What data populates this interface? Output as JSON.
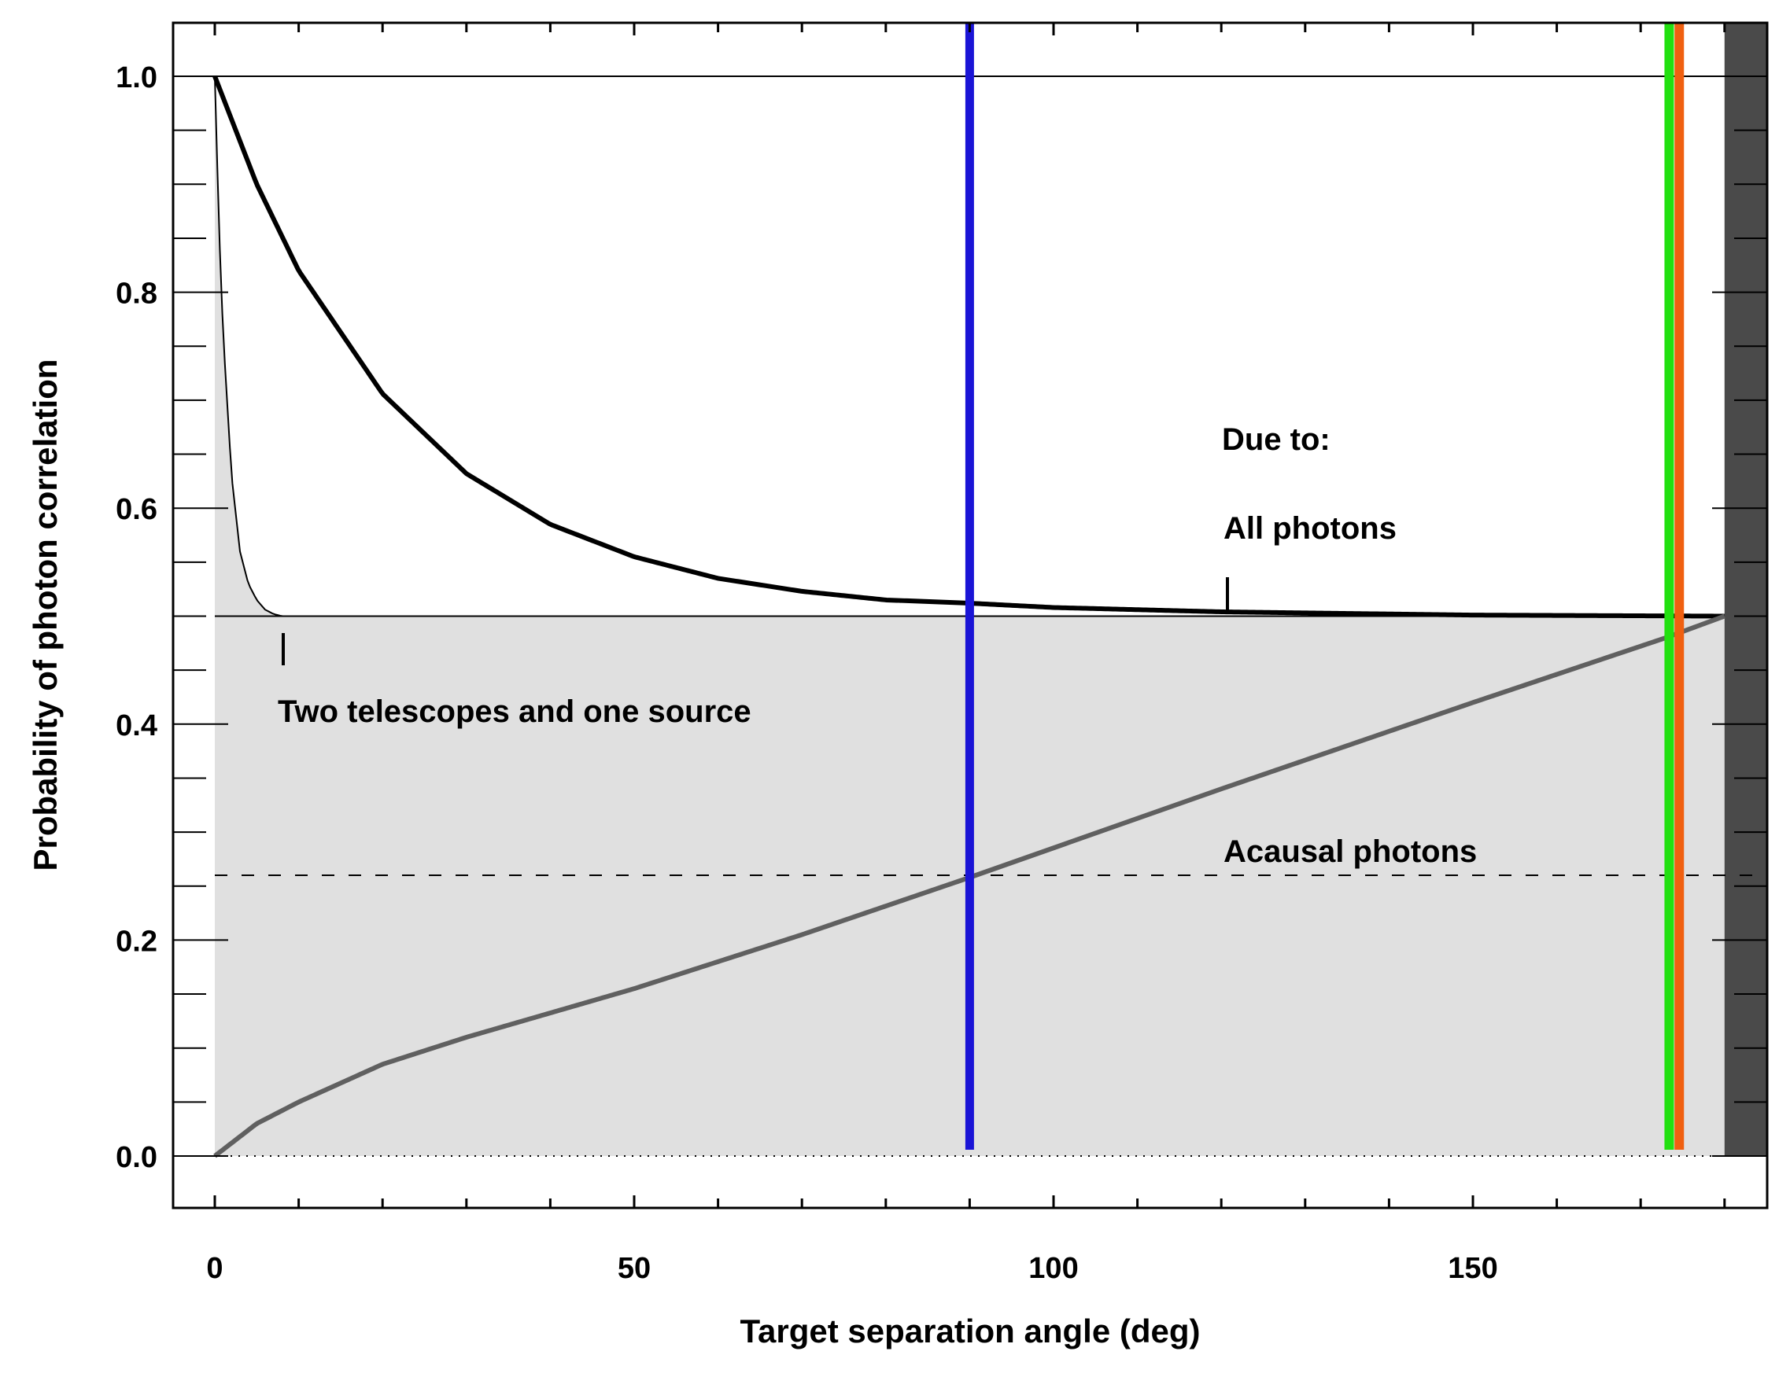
{
  "chart_data": {
    "type": "line",
    "xlabel": "Target separation angle (deg)",
    "ylabel": "Probability of photon correlation",
    "xlim": [
      -10,
      185
    ],
    "ylim": [
      -0.05,
      1.05
    ],
    "xticks": [
      "0",
      "50",
      "100",
      "150"
    ],
    "xtick_values": [
      0,
      50,
      100,
      150
    ],
    "yticks": [
      "0.0",
      "0.2",
      "0.4",
      "0.6",
      "0.8",
      "1.0"
    ],
    "ytick_values": [
      0,
      0.2,
      0.4,
      0.6,
      0.8,
      1.0
    ],
    "grid": false,
    "series": [
      {
        "name": "All photons",
        "color": "#000000",
        "style": "thick",
        "x": [
          0,
          5,
          10,
          20,
          30,
          40,
          50,
          60,
          70,
          80,
          90,
          100,
          120,
          150,
          180
        ],
        "y": [
          1.0,
          0.9,
          0.82,
          0.706,
          0.632,
          0.585,
          0.555,
          0.535,
          0.523,
          0.515,
          0.512,
          0.508,
          0.504,
          0.501,
          0.5
        ]
      },
      {
        "name": "Two telescopes and one source",
        "color": "#000000",
        "style": "thin",
        "x": [
          0,
          0.5,
          1,
          2,
          3,
          4,
          5,
          6,
          7,
          8,
          180
        ],
        "y": [
          1.0,
          0.86,
          0.76,
          0.63,
          0.56,
          0.53,
          0.515,
          0.506,
          0.502,
          0.5,
          0.5
        ]
      },
      {
        "name": "Acausal photons",
        "color": "#606060",
        "style": "thick",
        "x": [
          0,
          5,
          10,
          20,
          30,
          50,
          70,
          90,
          120,
          150,
          173,
          180
        ],
        "y": [
          0,
          0.03,
          0.05,
          0.085,
          0.11,
          0.155,
          0.205,
          0.258,
          0.34,
          0.42,
          0.48,
          0.5
        ]
      }
    ],
    "reference_lines": {
      "horizontal_solid": [
        1.0,
        0.5
      ],
      "horizontal_dashed": 0.26,
      "horizontal_dotted": 0.0
    },
    "vertical_lines": [
      {
        "x": 90,
        "color": "#1a14d6"
      },
      {
        "x": 173.4,
        "color": "#22e010"
      },
      {
        "x": 174.6,
        "color": "#f06010"
      }
    ],
    "shaded_region": {
      "x_from": 180,
      "color": "#4a4a4a"
    },
    "fill_color": "#e0e0e0",
    "annotations": {
      "due_to": "Due to:",
      "all_photons": "All photons",
      "two_telescopes": "Two telescopes and one source",
      "acausal": "Acausal photons"
    }
  }
}
